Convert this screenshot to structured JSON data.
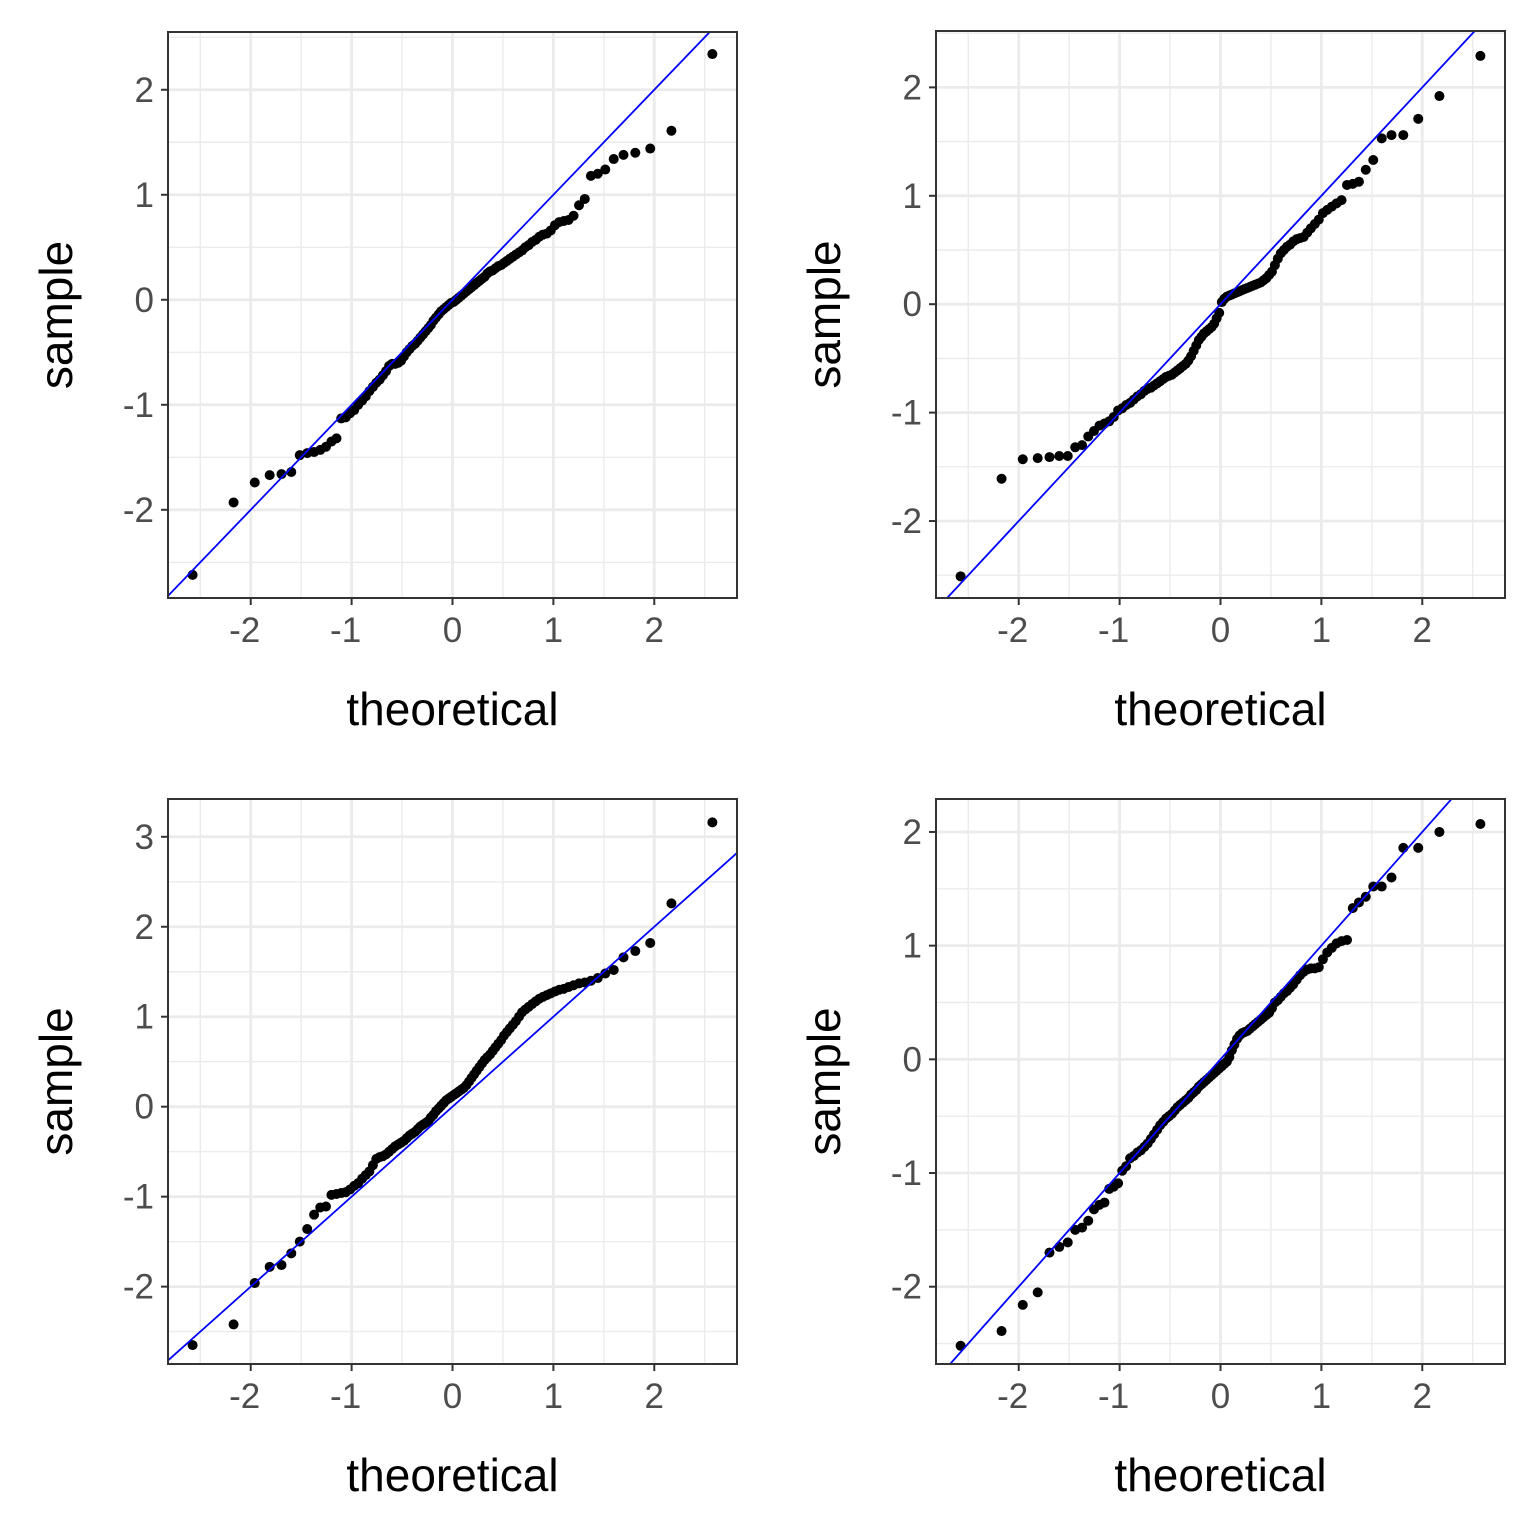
{
  "chart_data": [
    {
      "type": "scatter",
      "title": "",
      "xlabel": "theoretical",
      "ylabel": "sample",
      "xlim": [
        -2.82,
        2.82
      ],
      "ylim": [
        -2.84,
        2.55
      ],
      "xticks": [
        "-2",
        "-1",
        "0",
        "1",
        "2"
      ],
      "yticks": [
        "-2",
        "-1",
        "0",
        "1",
        "2"
      ],
      "grid": true,
      "reference_line": {
        "slope": 1,
        "intercept": 0
      },
      "sample": [
        -2.62,
        -1.93,
        -1.74,
        -1.67,
        -1.66,
        -1.64,
        -1.48,
        -1.46,
        -1.45,
        -1.43,
        -1.4,
        -1.35,
        -1.32,
        -1.13,
        -1.12,
        -1.08,
        -1.05,
        -1.0,
        -0.96,
        -0.92,
        -0.87,
        -0.83,
        -0.79,
        -0.76,
        -0.72,
        -0.68,
        -0.63,
        -0.61,
        -0.61,
        -0.6,
        -0.58,
        -0.54,
        -0.5,
        -0.47,
        -0.44,
        -0.42,
        -0.39,
        -0.36,
        -0.33,
        -0.3,
        -0.27,
        -0.24,
        -0.2,
        -0.17,
        -0.14,
        -0.11,
        -0.09,
        -0.07,
        -0.05,
        -0.03,
        -0.02,
        0.0,
        0.02,
        0.04,
        0.06,
        0.08,
        0.1,
        0.12,
        0.14,
        0.16,
        0.18,
        0.2,
        0.22,
        0.25,
        0.27,
        0.28,
        0.3,
        0.32,
        0.33,
        0.35,
        0.37,
        0.39,
        0.41,
        0.43,
        0.45,
        0.47,
        0.5,
        0.52,
        0.55,
        0.57,
        0.6,
        0.62,
        0.63,
        0.66,
        0.71,
        0.74,
        0.75,
        0.76,
        0.8,
        0.9,
        0.96,
        1.18,
        1.2,
        1.24,
        1.34,
        1.38,
        1.4,
        1.44,
        1.61,
        2.34
      ]
    },
    {
      "type": "scatter",
      "title": "",
      "xlabel": "theoretical",
      "ylabel": "sample",
      "xlim": [
        -2.82,
        2.82
      ],
      "ylim": [
        -2.71,
        2.52
      ],
      "xticks": [
        "-2",
        "-1",
        "0",
        "1",
        "2"
      ],
      "yticks": [
        "-2",
        "-1",
        "0",
        "1",
        "2"
      ],
      "grid": true,
      "reference_line": {
        "slope": 1,
        "intercept": 0
      },
      "sample": [
        -2.51,
        -1.61,
        -1.43,
        -1.42,
        -1.41,
        -1.4,
        -1.4,
        -1.32,
        -1.3,
        -1.22,
        -1.17,
        -1.12,
        -1.1,
        -1.08,
        -1.04,
        -0.98,
        -0.96,
        -0.93,
        -0.91,
        -0.88,
        -0.85,
        -0.83,
        -0.8,
        -0.78,
        -0.77,
        -0.75,
        -0.73,
        -0.71,
        -0.69,
        -0.67,
        -0.66,
        -0.65,
        -0.63,
        -0.61,
        -0.59,
        -0.57,
        -0.55,
        -0.52,
        -0.48,
        -0.43,
        -0.38,
        -0.33,
        -0.3,
        -0.27,
        -0.25,
        -0.23,
        -0.21,
        -0.18,
        -0.13,
        -0.08,
        0.02,
        0.05,
        0.07,
        0.08,
        0.09,
        0.1,
        0.11,
        0.12,
        0.13,
        0.14,
        0.15,
        0.16,
        0.17,
        0.18,
        0.19,
        0.2,
        0.22,
        0.24,
        0.27,
        0.3,
        0.36,
        0.42,
        0.47,
        0.5,
        0.53,
        0.55,
        0.58,
        0.6,
        0.61,
        0.62,
        0.66,
        0.7,
        0.74,
        0.78,
        0.84,
        0.87,
        0.9,
        0.93,
        0.96,
        1.1,
        1.11,
        1.13,
        1.24,
        1.33,
        1.53,
        1.56,
        1.56,
        1.71,
        1.92,
        2.29
      ]
    },
    {
      "type": "scatter",
      "title": "",
      "xlabel": "theoretical",
      "ylabel": "sample",
      "xlim": [
        -2.82,
        2.82
      ],
      "ylim": [
        -2.86,
        3.42
      ],
      "xticks": [
        "-2",
        "-1",
        "0",
        "1",
        "2"
      ],
      "yticks": [
        "-2",
        "-1",
        "0",
        "1",
        "2",
        "3"
      ],
      "grid": true,
      "reference_line": {
        "slope": 1,
        "intercept": 0
      },
      "sample": [
        -2.65,
        -2.42,
        -1.96,
        -1.78,
        -1.76,
        -1.63,
        -1.5,
        -1.36,
        -1.2,
        -1.12,
        -1.11,
        -0.98,
        -0.97,
        -0.96,
        -0.95,
        -0.92,
        -0.88,
        -0.85,
        -0.8,
        -0.76,
        -0.72,
        -0.65,
        -0.58,
        -0.56,
        -0.55,
        -0.53,
        -0.5,
        -0.47,
        -0.44,
        -0.42,
        -0.4,
        -0.38,
        -0.35,
        -0.32,
        -0.3,
        -0.28,
        -0.25,
        -0.22,
        -0.2,
        -0.18,
        -0.16,
        -0.12,
        -0.09,
        -0.05,
        -0.02,
        0.01,
        0.04,
        0.07,
        0.09,
        0.11,
        0.13,
        0.15,
        0.17,
        0.19,
        0.21,
        0.24,
        0.28,
        0.32,
        0.36,
        0.4,
        0.44,
        0.48,
        0.52,
        0.55,
        0.58,
        0.62,
        0.66,
        0.7,
        0.74,
        0.79,
        0.83,
        0.87,
        0.91,
        0.95,
        1.0,
        1.05,
        1.08,
        1.11,
        1.14,
        1.17,
        1.2,
        1.22,
        1.24,
        1.26,
        1.28,
        1.3,
        1.31,
        1.33,
        1.35,
        1.37,
        1.38,
        1.4,
        1.43,
        1.48,
        1.52,
        1.66,
        1.73,
        1.82,
        2.26,
        3.16
      ]
    },
    {
      "type": "scatter",
      "title": "",
      "xlabel": "theoretical",
      "ylabel": "sample",
      "xlim": [
        -2.82,
        2.82
      ],
      "ylim": [
        -2.68,
        2.29
      ],
      "xticks": [
        "-2",
        "-1",
        "0",
        "1",
        "2"
      ],
      "yticks": [
        "-2",
        "-1",
        "0",
        "1",
        "2"
      ],
      "grid": true,
      "reference_line": {
        "slope": 1,
        "intercept": 0
      },
      "sample": [
        -2.52,
        -2.39,
        -2.16,
        -2.05,
        -1.7,
        -1.65,
        -1.61,
        -1.5,
        -1.48,
        -1.42,
        -1.32,
        -1.28,
        -1.26,
        -1.14,
        -1.12,
        -1.09,
        -0.98,
        -0.94,
        -0.87,
        -0.85,
        -0.82,
        -0.8,
        -0.77,
        -0.74,
        -0.7,
        -0.66,
        -0.62,
        -0.58,
        -0.55,
        -0.52,
        -0.5,
        -0.48,
        -0.45,
        -0.42,
        -0.4,
        -0.38,
        -0.36,
        -0.34,
        -0.31,
        -0.29,
        -0.27,
        -0.24,
        -0.22,
        -0.2,
        -0.18,
        -0.16,
        -0.14,
        -0.12,
        -0.1,
        -0.08,
        -0.06,
        -0.04,
        -0.02,
        0.02,
        0.08,
        0.13,
        0.18,
        0.21,
        0.23,
        0.24,
        0.25,
        0.27,
        0.29,
        0.31,
        0.33,
        0.35,
        0.37,
        0.39,
        0.41,
        0.45,
        0.5,
        0.52,
        0.55,
        0.58,
        0.6,
        0.63,
        0.66,
        0.7,
        0.74,
        0.77,
        0.79,
        0.8,
        0.8,
        0.81,
        0.88,
        0.94,
        0.98,
        1.02,
        1.04,
        1.05,
        1.33,
        1.38,
        1.43,
        1.52,
        1.52,
        1.6,
        1.86,
        1.86,
        2.0,
        2.07
      ]
    }
  ],
  "theoretical": [
    -2.576,
    -2.17,
    -1.96,
    -1.812,
    -1.695,
    -1.598,
    -1.514,
    -1.44,
    -1.372,
    -1.311,
    -1.254,
    -1.2,
    -1.15,
    -1.103,
    -1.058,
    -1.015,
    -0.974,
    -0.935,
    -0.896,
    -0.86,
    -0.824,
    -0.789,
    -0.755,
    -0.722,
    -0.69,
    -0.659,
    -0.628,
    -0.598,
    -0.568,
    -0.539,
    -0.51,
    -0.482,
    -0.454,
    -0.426,
    -0.399,
    -0.372,
    -0.345,
    -0.319,
    -0.292,
    -0.266,
    -0.24,
    -0.215,
    -0.189,
    -0.164,
    -0.138,
    -0.113,
    -0.088,
    -0.063,
    -0.038,
    -0.013,
    0.013,
    0.038,
    0.063,
    0.088,
    0.113,
    0.138,
    0.164,
    0.189,
    0.215,
    0.24,
    0.266,
    0.292,
    0.319,
    0.345,
    0.372,
    0.399,
    0.426,
    0.454,
    0.482,
    0.51,
    0.539,
    0.568,
    0.598,
    0.628,
    0.659,
    0.69,
    0.722,
    0.755,
    0.789,
    0.824,
    0.86,
    0.896,
    0.935,
    0.974,
    1.015,
    1.058,
    1.103,
    1.15,
    1.2,
    1.254,
    1.311,
    1.372,
    1.44,
    1.514,
    1.598,
    1.695,
    1.812,
    1.96,
    2.17,
    2.576
  ],
  "colors": {
    "points": "#000000",
    "reference_line": "#0000ff",
    "grid_major": "#ebebeb",
    "grid_minor": "#ebebeb",
    "border": "#333333",
    "tick_text": "#4d4d4d"
  }
}
